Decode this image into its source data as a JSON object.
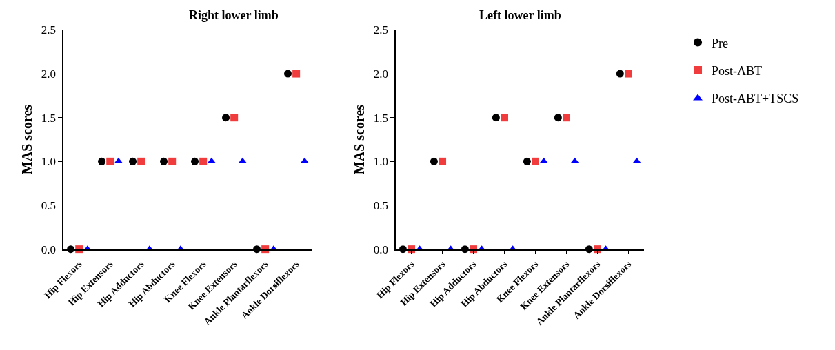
{
  "chart_data": [
    {
      "type": "scatter",
      "title": "Right lower limb",
      "ylabel": "MAS scores",
      "categories": [
        "Hip Flexors",
        "Hip Extensors",
        "Hip Adductors",
        "Hip Abductors",
        "Knee Flexors",
        "Knee Extensors",
        "Ankle Plantarflexors",
        "Ankle Dorsiflexors"
      ],
      "series": [
        {
          "name": "Pre",
          "color": "#000000",
          "marker": "circle",
          "values": [
            0,
            1,
            1,
            1,
            1,
            1.5,
            0,
            2
          ]
        },
        {
          "name": "Post-ABT",
          "color": "#f03c3c",
          "marker": "square",
          "values": [
            0,
            1,
            1,
            1,
            1,
            1.5,
            0,
            2
          ]
        },
        {
          "name": "Post-ABT+TSCS",
          "color": "#0000ff",
          "marker": "triangle",
          "values": [
            0,
            1,
            0,
            0,
            1,
            1,
            0,
            1
          ]
        }
      ],
      "ylim": [
        0,
        2.5
      ],
      "yticks": [
        {
          "value": 0,
          "label": "0.0"
        },
        {
          "value": 0.5,
          "label": "0.5"
        },
        {
          "value": 1,
          "label": "1.0"
        },
        {
          "value": 1.5,
          "label": "1.5"
        },
        {
          "value": 2,
          "label": "2.0"
        },
        {
          "value": 2.5,
          "label": "2.5"
        }
      ],
      "legend": "right"
    },
    {
      "type": "scatter",
      "title": "Left lower limb",
      "ylabel": "MAS scores",
      "categories": [
        "Hip Flexors",
        "Hip Extensors",
        "Hip Adductors",
        "Hip Abductors",
        "Knee Flexors",
        "Knee Extensors",
        "Ankle Plantarflexors",
        "Ankle Dorsiflexors"
      ],
      "series": [
        {
          "name": "Pre",
          "color": "#000000",
          "marker": "circle",
          "values": [
            0,
            1,
            0,
            1.5,
            1,
            1.5,
            0,
            2
          ]
        },
        {
          "name": "Post-ABT",
          "color": "#f03c3c",
          "marker": "square",
          "values": [
            0,
            1,
            0,
            1.5,
            1,
            1.5,
            0,
            2
          ]
        },
        {
          "name": "Post-ABT+TSCS",
          "color": "#0000ff",
          "marker": "triangle",
          "values": [
            0,
            0,
            0,
            0,
            1,
            1,
            0,
            1
          ]
        }
      ],
      "ylim": [
        0,
        2.5
      ],
      "yticks": [
        {
          "value": 0,
          "label": "0.0"
        },
        {
          "value": 0.5,
          "label": "0.5"
        },
        {
          "value": 1,
          "label": "1.0"
        },
        {
          "value": 1.5,
          "label": "1.5"
        },
        {
          "value": 2,
          "label": "2.0"
        },
        {
          "value": 2.5,
          "label": "2.5"
        }
      ],
      "legend": "right"
    }
  ]
}
